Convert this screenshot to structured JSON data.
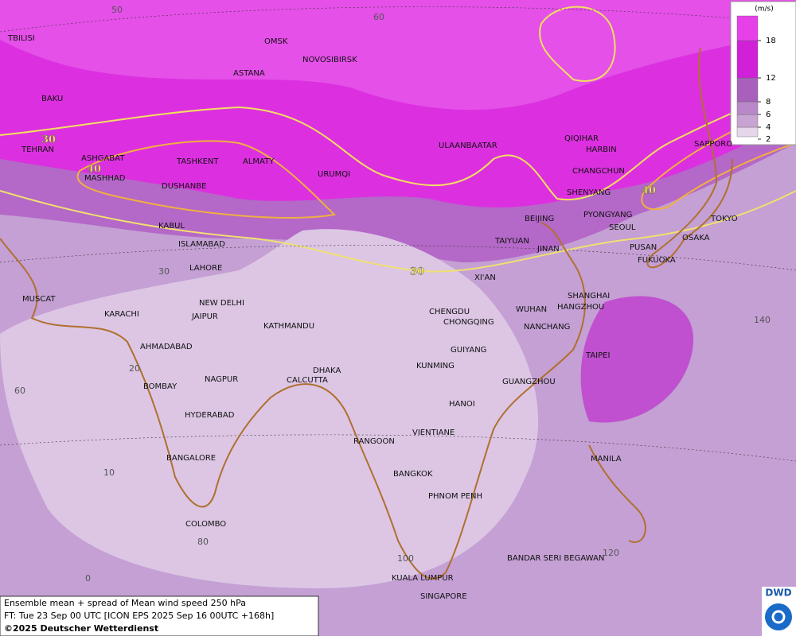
{
  "map": {
    "cities": [
      "TBILISI",
      "OMSK",
      "NOVOSIBIRSK",
      "ASTANA",
      "BAKU",
      "TEHRAN",
      "ASHGABAT",
      "MASHHAD",
      "TASHKENT",
      "ALMATY",
      "DUSHANBE",
      "URUMQI",
      "ULAANBAATAR",
      "QIQIHAR",
      "HARBIN",
      "CHANGCHUN",
      "SHENYANG",
      "SAPPORO",
      "BEIJING",
      "PYONGYANG",
      "SEOUL",
      "TOKYO",
      "TAIYUAN",
      "JINAN",
      "PUSAN",
      "OSAKA",
      "FUKUOKA",
      "KABUL",
      "ISLAMABAD",
      "LAHORE",
      "XI'AN",
      "SHANGHAI",
      "HANGZHOU",
      "MUSCAT",
      "KARACHI",
      "NEW DELHI",
      "JAIPUR",
      "KATHMANDU",
      "CHENGDU",
      "CHONGQING",
      "WUHAN",
      "NANCHANG",
      "TAIPEI",
      "AHMADABAD",
      "GUIYANG",
      "KUNMING",
      "DHAKA",
      "CALCUTTA",
      "NAGPUR",
      "BOMBAY",
      "GUANGZHOU",
      "HYDERABAD",
      "HANOI",
      "RANGOON",
      "VIENTIANE",
      "BANGALORE",
      "MANILA",
      "BANGKOK",
      "PHNOM PENH",
      "COLOMBO",
      "BANDAR SERI BEGAWAN",
      "KUALA LUMPUR",
      "SINGAPORE"
    ],
    "grid_labels": [
      "50",
      "60",
      "30",
      "20",
      "60",
      "10",
      "80",
      "0",
      "100",
      "120",
      "140"
    ],
    "contour_labels": [
      "30",
      "40",
      "40",
      "30"
    ]
  },
  "legend": {
    "unit": "(m/s)",
    "levels": [
      2,
      4,
      6,
      8,
      12,
      18
    ],
    "colors": [
      "#e6d6ea",
      "#c8a4d2",
      "#b888c8",
      "#a860bc",
      "#d020d8",
      "#e640e8",
      "#f070f0"
    ]
  },
  "footer": {
    "lines": [
      "Ensemble mean + spread of Mean wind speed 250 hPa",
      "FT: Tue 23 Sep 00 UTC [ICON EPS 2025 Sep 16 00UTC +168h]",
      "©2025 Deutscher Wetterdienst"
    ],
    "logo": "DWD"
  }
}
